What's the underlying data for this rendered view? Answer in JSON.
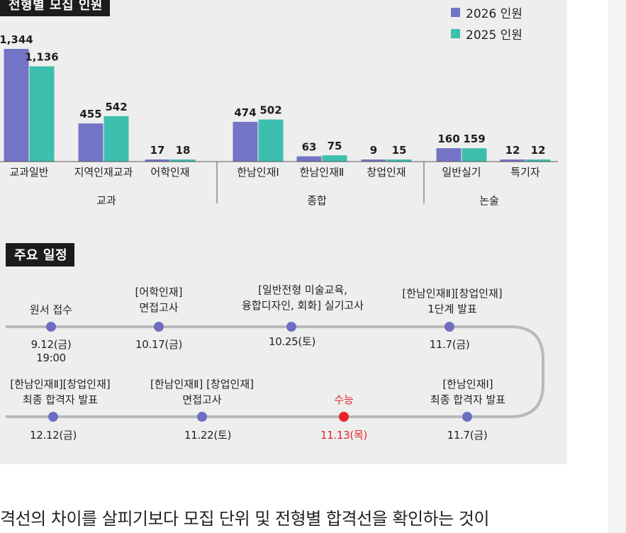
{
  "chart_heading": "전형별 모집 인원",
  "schedule_heading": "주요 일정",
  "colors": {
    "series_2026": "#7474c6",
    "series_2025": "#3dbfae",
    "highlight": "#e8232a"
  },
  "chart_data": {
    "type": "bar",
    "title": "전형별 모집 인원",
    "categories": [
      "교과일반",
      "지역인재교과",
      "어학인재",
      "한남인재Ⅰ",
      "한남인재Ⅱ",
      "창업인재",
      "일반실기",
      "특기자"
    ],
    "groups": [
      {
        "label": "교과",
        "categories": [
          "교과일반",
          "지역인재교과",
          "어학인재"
        ]
      },
      {
        "label": "종합",
        "categories": [
          "한남인재Ⅰ",
          "한남인재Ⅱ",
          "창업인재"
        ]
      },
      {
        "label": "논술",
        "categories": [
          "일반실기",
          "특기자"
        ]
      }
    ],
    "series": [
      {
        "name": "2026 인원",
        "values": [
          1344,
          455,
          17,
          474,
          63,
          9,
          160,
          12
        ]
      },
      {
        "name": "2025 인원",
        "values": [
          1136,
          542,
          18,
          502,
          75,
          15,
          159,
          12
        ]
      }
    ],
    "value_labels": [
      [
        "1,344",
        "455",
        "17",
        "474",
        "63",
        "9",
        "160",
        "12"
      ],
      [
        "1,136",
        "542",
        "18",
        "502",
        "75",
        "15",
        "159",
        "12"
      ]
    ],
    "legend": "top-right",
    "grid": false
  },
  "schedule": [
    {
      "title": "원서 접수",
      "date": "9.12(금)",
      "time": "19:00"
    },
    {
      "title": "[어학인재]\n면접고사",
      "date": "10.17(금)"
    },
    {
      "title": "[일반전형 미술교육,\n융합디자인, 회화] 실기고사",
      "date": "10.25(토)"
    },
    {
      "title": "[한남인재Ⅱ][창업인재]\n1단계 발표",
      "date": "11.7(금)"
    },
    {
      "title": "[한남인재Ⅰ]\n최종 합격자 발표",
      "date": "11.7(금)"
    },
    {
      "title": "수능",
      "date": "11.13(목)",
      "highlight": true
    },
    {
      "title": "[한남인재Ⅱ] [창업인재]\n면접고사",
      "date": "11.22(토)"
    },
    {
      "title": "[한남인재Ⅱ][창업인재]\n최종 합격자 발표",
      "date": "12.12(금)"
    }
  ],
  "footer_text": "격선의 차이를 살피기보다 모집 단위 및 전형별 합격선을 확인하는 것이"
}
